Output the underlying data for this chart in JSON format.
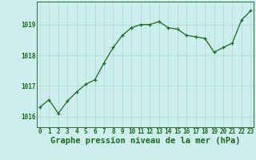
{
  "x": [
    0,
    1,
    2,
    3,
    4,
    5,
    6,
    7,
    8,
    9,
    10,
    11,
    12,
    13,
    14,
    15,
    16,
    17,
    18,
    19,
    20,
    21,
    22,
    23
  ],
  "y": [
    1016.3,
    1016.55,
    1016.1,
    1016.5,
    1016.8,
    1017.05,
    1017.2,
    1017.75,
    1018.25,
    1018.65,
    1018.9,
    1019.0,
    1019.0,
    1019.1,
    1018.9,
    1018.85,
    1018.65,
    1018.6,
    1018.55,
    1018.1,
    1018.25,
    1018.4,
    1019.15,
    1019.45
  ],
  "line_color": "#1a6b1a",
  "marker_color": "#1a6b1a",
  "bg_color": "#cceeed",
  "grid_color": "#aad8d8",
  "title": "Graphe pression niveau de la mer (hPa)",
  "xlabel_ticks": [
    0,
    1,
    2,
    3,
    4,
    5,
    6,
    7,
    8,
    9,
    10,
    11,
    12,
    13,
    14,
    15,
    16,
    17,
    18,
    19,
    20,
    21,
    22,
    23
  ],
  "yticks": [
    1016,
    1017,
    1018,
    1019
  ],
  "ylim": [
    1015.65,
    1019.75
  ],
  "xlim": [
    -0.3,
    23.3
  ],
  "tick_fontsize": 5.5,
  "title_fontsize": 7.5,
  "border_color": "#336633"
}
